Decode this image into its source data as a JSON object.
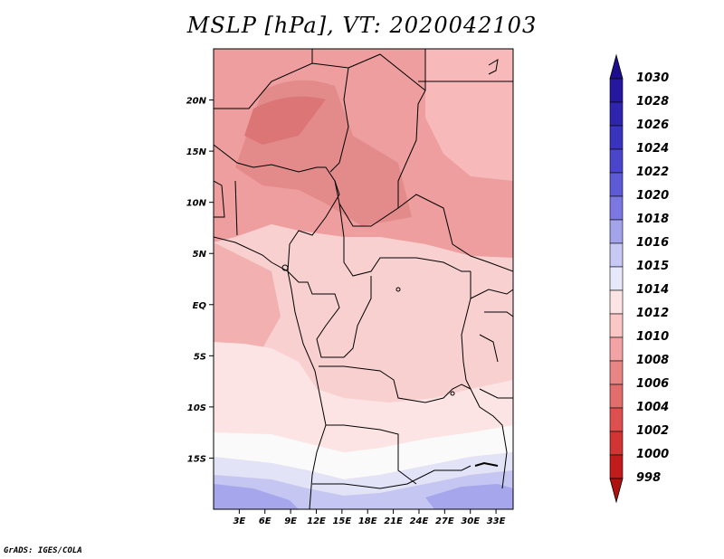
{
  "title": "MSLP [hPa], VT: 2020042103",
  "credit": "GrADS: IGES/COLA",
  "map": {
    "lon_labels": [
      "3E",
      "6E",
      "9E",
      "12E",
      "15E",
      "18E",
      "21E",
      "24E",
      "27E",
      "30E",
      "33E"
    ],
    "lat_labels": [
      "20N",
      "15N",
      "10N",
      "5N",
      "EQ",
      "5S",
      "10S",
      "15S"
    ],
    "lon_range": [
      0,
      35
    ],
    "lat_range": [
      -20,
      25
    ]
  },
  "colorbar": {
    "labels": [
      "1030",
      "1028",
      "1026",
      "1024",
      "1022",
      "1020",
      "1018",
      "1016",
      "1015",
      "1014",
      "1012",
      "1010",
      "1008",
      "1006",
      "1004",
      "1002",
      "1000",
      "998"
    ],
    "colors": [
      "#1c0e8c",
      "#25189e",
      "#2f24ae",
      "#3a33bd",
      "#4a45cb",
      "#5e5ad6",
      "#7b79e1",
      "#a3a3ec",
      "#c8c8f4",
      "#e8e8fb",
      "#fde4e4",
      "#fac6c6",
      "#f2a3a3",
      "#e88686",
      "#e36d6d",
      "#de5050",
      "#d23434",
      "#c01c1c",
      "#b01010"
    ]
  }
}
